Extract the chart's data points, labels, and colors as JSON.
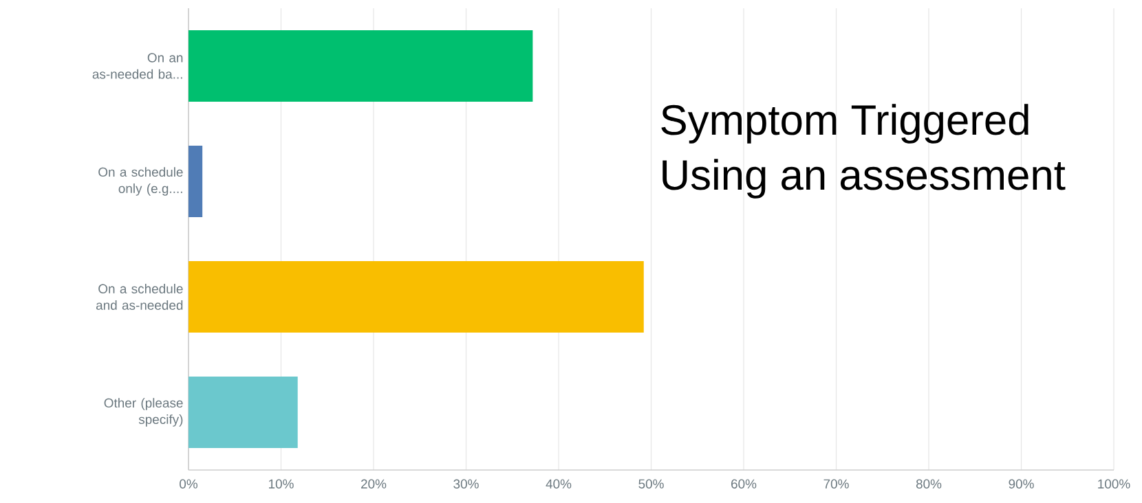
{
  "chart_data": {
    "type": "bar",
    "orientation": "horizontal",
    "categories": [
      "On an as-needed ba...",
      "On a schedule only (e.g....",
      "On a schedule and as-needed",
      "Other (please specify)"
    ],
    "values": [
      37.2,
      1.5,
      49.2,
      11.8
    ],
    "colors": [
      "#00bf6f",
      "#507cb6",
      "#f9be00",
      "#6bc8cd"
    ],
    "xlim": [
      0,
      100
    ],
    "xticks": [
      {
        "value": 0,
        "label": "0%"
      },
      {
        "value": 10,
        "label": "10%"
      },
      {
        "value": 20,
        "label": "20%"
      },
      {
        "value": 30,
        "label": "30%"
      },
      {
        "value": 40,
        "label": "40%"
      },
      {
        "value": 50,
        "label": "50%"
      },
      {
        "value": 60,
        "label": "60%"
      },
      {
        "value": 70,
        "label": "70%"
      },
      {
        "value": 80,
        "label": "80%"
      },
      {
        "value": 90,
        "label": "90%"
      },
      {
        "value": 100,
        "label": "100%"
      }
    ],
    "grid": "x",
    "annotations": [
      "Symptom Triggered",
      "Using an assessment"
    ]
  }
}
